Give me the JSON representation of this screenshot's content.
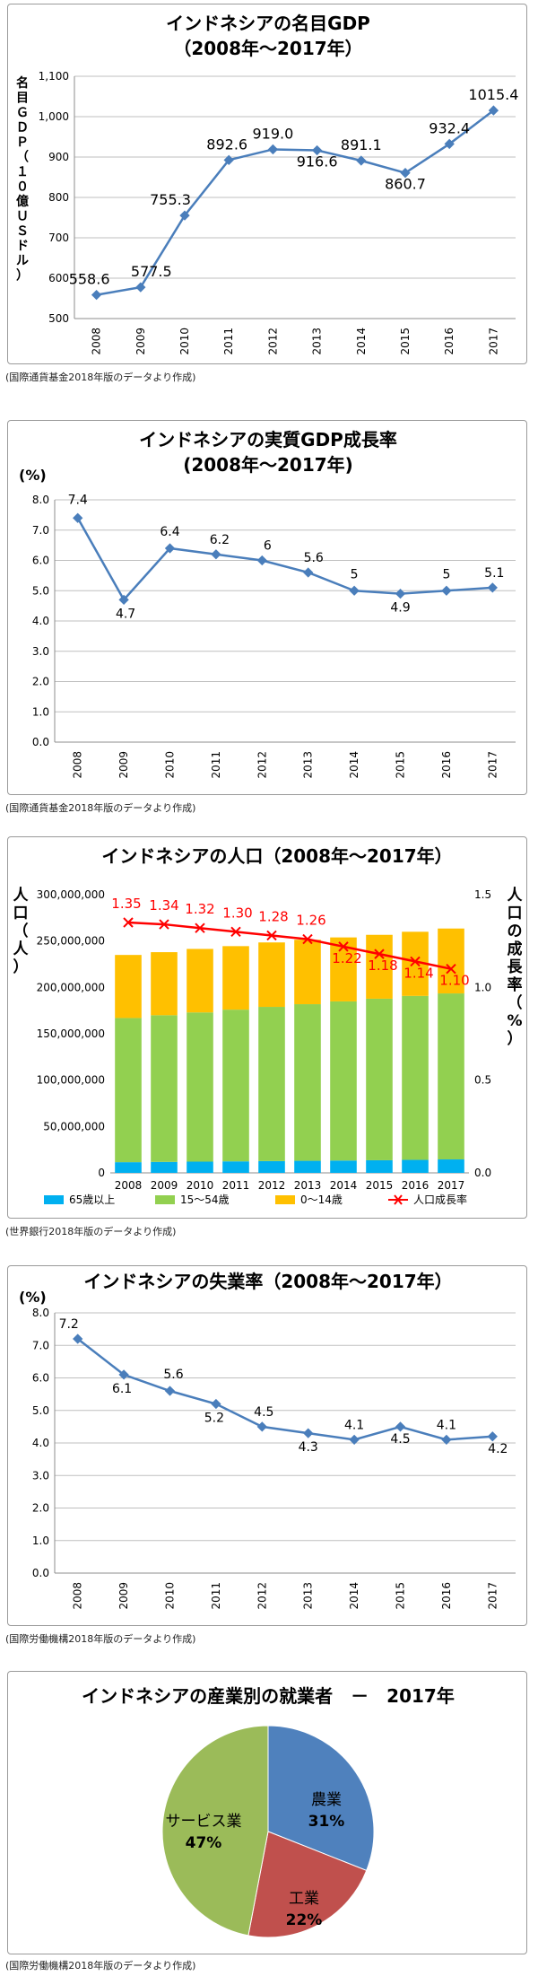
{
  "chart_data": [
    {
      "type": "line",
      "title": "インドネシアの名目GDP",
      "subtitle": "（2008年～2017年）",
      "ylabel": "名目ＧＤＰ（１０億ＵＳドル）",
      "categories": [
        "2008",
        "2009",
        "2010",
        "2011",
        "2012",
        "2013",
        "2014",
        "2015",
        "2016",
        "2017"
      ],
      "values": [
        558.6,
        577.5,
        755.3,
        892.6,
        919.0,
        916.6,
        891.1,
        860.7,
        932.4,
        1015.4
      ],
      "data_labels": [
        "558.6",
        "577.5",
        "755.3",
        "892.6",
        "919.0",
        "916.6",
        "891.1",
        "860.7",
        "932.4",
        "1015.4"
      ],
      "yticks": [
        "500",
        "600",
        "700",
        "800",
        "900",
        "1,000",
        "1,100"
      ],
      "ylim": [
        500,
        1100
      ],
      "grid": true,
      "line_color": "#4a7ebb"
    },
    {
      "type": "line",
      "title": "インドネシアの実質GDP成長率",
      "subtitle": "(2008年～2017年)",
      "yunit": "(%)",
      "categories": [
        "2008",
        "2009",
        "2010",
        "2011",
        "2012",
        "2013",
        "2014",
        "2015",
        "2016",
        "2017"
      ],
      "values": [
        7.4,
        4.7,
        6.4,
        6.2,
        6.0,
        5.6,
        5.0,
        4.9,
        5.0,
        5.1
      ],
      "data_labels": [
        "7.4",
        "4.7",
        "6.4",
        "6.2",
        "6",
        "5.6",
        "5",
        "4.9",
        "5",
        "5.1"
      ],
      "yticks": [
        "0.0",
        "1.0",
        "2.0",
        "3.0",
        "4.0",
        "5.0",
        "6.0",
        "7.0",
        "8.0"
      ],
      "ylim": [
        0,
        8
      ],
      "grid": true,
      "line_color": "#4a7ebb"
    },
    {
      "type": "bar",
      "stacked": true,
      "title": "インドネシアの人口（2008年～2017年）",
      "ylabel_left": "人口（人）",
      "ylabel_right": "人口の成長率（%）",
      "categories": [
        "2008",
        "2009",
        "2010",
        "2011",
        "2012",
        "2013",
        "2014",
        "2015",
        "2016",
        "2017"
      ],
      "series": [
        {
          "name": "65歳以上",
          "color": "#00b0f0",
          "values": [
            11500000,
            11800000,
            12100000,
            12400000,
            12700000,
            13000000,
            13300000,
            13600000,
            14000000,
            14500000
          ]
        },
        {
          "name": "15～54歳",
          "color": "#92d050",
          "values": [
            155500000,
            158200000,
            160900000,
            163600000,
            166300000,
            168900000,
            171600000,
            174200000,
            176800000,
            179000000
          ]
        },
        {
          "name": "0～14歳",
          "color": "#ffc000",
          "values": [
            68000000,
            68000000,
            68500000,
            68500000,
            69500000,
            69500000,
            69000000,
            68900000,
            69200000,
            70000000
          ]
        },
        {
          "name": "人口成長率",
          "color": "#ff0000",
          "axis": "right",
          "type": "line",
          "values": [
            1.35,
            1.34,
            1.32,
            1.3,
            1.28,
            1.26,
            1.22,
            1.18,
            1.14,
            1.1
          ]
        }
      ],
      "data_labels": [
        "1.35",
        "1.34",
        "1.32",
        "1.30",
        "1.28",
        "1.26",
        "1.22",
        "1.18",
        "1.14",
        "1.10"
      ],
      "yticks_left": [
        "0",
        "50,000,000",
        "100,000,000",
        "150,000,000",
        "200,000,000",
        "250,000,000",
        "300,000,000"
      ],
      "yticks_right": [
        "0.0",
        "0.5",
        "1.0",
        "1.5"
      ],
      "ylim": [
        0,
        300000000
      ],
      "ylim_right": [
        0,
        1.5
      ],
      "legend": "bottom",
      "grid": false
    },
    {
      "type": "line",
      "title": "インドネシアの失業率（2008年～2017年）",
      "yunit": "(%)",
      "categories": [
        "2008",
        "2009",
        "2010",
        "2011",
        "2012",
        "2013",
        "2014",
        "2015",
        "2016",
        "2017"
      ],
      "values": [
        7.2,
        6.1,
        5.6,
        5.2,
        4.5,
        4.3,
        4.1,
        4.5,
        4.1,
        4.2
      ],
      "data_labels": [
        "7.2",
        "6.1",
        "5.6",
        "5.2",
        "4.5",
        "4.3",
        "4.1",
        "4.5",
        "4.1",
        "4.2"
      ],
      "yticks": [
        "0.0",
        "1.0",
        "2.0",
        "3.0",
        "4.0",
        "5.0",
        "6.0",
        "7.0",
        "8.0"
      ],
      "ylim": [
        0,
        8
      ],
      "grid": true,
      "line_color": "#4a7ebb"
    },
    {
      "type": "pie",
      "title": "インドネシアの産業別の就業者　－　2017年",
      "slices": [
        {
          "name": "農業",
          "value": 31,
          "label": "31%",
          "color": "#4f81bd"
        },
        {
          "name": "工業",
          "value": 22,
          "label": "22%",
          "color": "#c0504d"
        },
        {
          "name": "サービス業",
          "value": 47,
          "label": "47%",
          "color": "#9bbb59"
        }
      ]
    }
  ],
  "sources": [
    "(国際通貨基金2018年版のデータより作成)",
    "(国際通貨基金2018年版のデータより作成)",
    "(世界銀行2018年版のデータより作成)",
    "(国際労働機構2018年版のデータより作成)",
    "(国際労働機構2018年版のデータより作成)"
  ]
}
